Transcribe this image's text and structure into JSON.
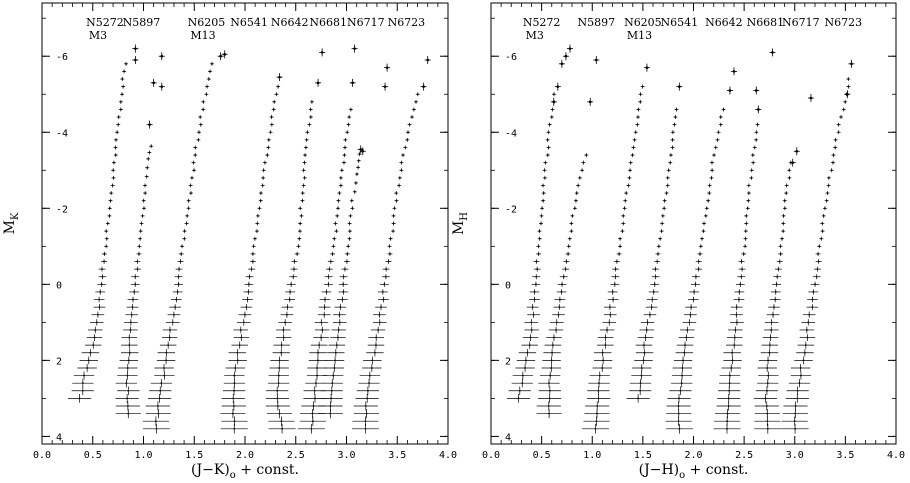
{
  "chart_data": [
    {
      "type": "scatter",
      "xlabel_main": "(J−K)",
      "xlabel_sub": "o",
      "xlabel_rest": " + const.",
      "ylabel_main": "M",
      "ylabel_sub": "K",
      "xlim": [
        0.0,
        4.0
      ],
      "ylim": [
        4.2,
        -7.4
      ],
      "x_ticks": [
        "0.0",
        "0.5",
        "1.0",
        "1.5",
        "2.0",
        "2.5",
        "3.0",
        "3.5",
        "4.0"
      ],
      "y_ticks": [
        "-6",
        "-4",
        "-2",
        "0",
        "2",
        "4"
      ],
      "clusters": [
        {
          "name": "N5272",
          "sub": "M3",
          "label_x": 0.62,
          "tip_mag": -6.0,
          "ridge": [
            [
              0.38,
              3.0
            ],
            [
              0.42,
              2.4
            ],
            [
              0.5,
              1.6
            ],
            [
              0.56,
              0.6
            ],
            [
              0.6,
              -0.4
            ],
            [
              0.64,
              -1.4
            ],
            [
              0.68,
              -2.4
            ],
            [
              0.72,
              -3.4
            ],
            [
              0.76,
              -4.4
            ],
            [
              0.8,
              -5.4
            ],
            [
              0.84,
              -6.0
            ]
          ],
          "tip": [
            [
              0.92,
              -6.2
            ],
            [
              0.92,
              -5.9
            ]
          ]
        },
        {
          "name": "N5897",
          "sub": "",
          "label_x": 0.98,
          "tip_mag": -3.8,
          "ridge": [
            [
              0.85,
              3.4
            ],
            [
              0.84,
              2.6
            ],
            [
              0.86,
              1.6
            ],
            [
              0.9,
              0.4
            ],
            [
              0.94,
              -0.6
            ],
            [
              0.98,
              -1.6
            ],
            [
              1.02,
              -2.6
            ],
            [
              1.05,
              -3.3
            ],
            [
              1.08,
              -3.8
            ]
          ],
          "tip": [
            [
              1.06,
              -4.2
            ],
            [
              1.1,
              -5.3
            ],
            [
              1.18,
              -5.2
            ],
            [
              1.18,
              -6.0
            ]
          ]
        },
        {
          "name": "N6205",
          "sub": "M13",
          "label_x": 1.62,
          "tip_mag": -6.0,
          "ridge": [
            [
              1.12,
              3.8
            ],
            [
              1.16,
              3.0
            ],
            [
              1.22,
              2.0
            ],
            [
              1.28,
              1.0
            ],
            [
              1.34,
              0.0
            ],
            [
              1.4,
              -1.2
            ],
            [
              1.46,
              -2.4
            ],
            [
              1.52,
              -3.6
            ],
            [
              1.58,
              -4.6
            ],
            [
              1.64,
              -5.4
            ],
            [
              1.7,
              -6.0
            ]
          ],
          "tip": [
            [
              1.76,
              -6.0
            ],
            [
              1.8,
              -6.05
            ]
          ]
        },
        {
          "name": "N6541",
          "sub": "",
          "label_x": 2.04,
          "tip_mag": -5.4,
          "ridge": [
            [
              1.9,
              3.8
            ],
            [
              1.88,
              3.0
            ],
            [
              1.92,
              2.0
            ],
            [
              1.98,
              1.0
            ],
            [
              2.04,
              0.0
            ],
            [
              2.1,
              -1.2
            ],
            [
              2.16,
              -2.4
            ],
            [
              2.22,
              -3.6
            ],
            [
              2.28,
              -4.6
            ],
            [
              2.34,
              -5.4
            ]
          ],
          "tip": [
            [
              2.34,
              -5.45
            ]
          ]
        },
        {
          "name": "N6642",
          "sub": "",
          "label_x": 2.44,
          "tip_mag": -5.2,
          "ridge": [
            [
              2.36,
              3.8
            ],
            [
              2.32,
              3.0
            ],
            [
              2.34,
              2.0
            ],
            [
              2.4,
              1.0
            ],
            [
              2.46,
              0.0
            ],
            [
              2.52,
              -1.0
            ],
            [
              2.56,
              -2.2
            ],
            [
              2.6,
              -3.4
            ],
            [
              2.64,
              -4.4
            ],
            [
              2.68,
              -5.0
            ]
          ],
          "tip": [
            [
              2.72,
              -5.3
            ],
            [
              2.76,
              -6.1
            ]
          ]
        },
        {
          "name": "N6681",
          "sub": "",
          "label_x": 2.82,
          "tip_mag": -4.8,
          "ridge": [
            [
              2.66,
              3.8
            ],
            [
              2.68,
              3.0
            ],
            [
              2.72,
              2.0
            ],
            [
              2.76,
              1.0
            ],
            [
              2.82,
              0.0
            ],
            [
              2.88,
              -1.2
            ],
            [
              2.94,
              -2.4
            ],
            [
              2.98,
              -3.6
            ],
            [
              3.02,
              -4.4
            ],
            [
              3.06,
              -4.8
            ]
          ],
          "tip": [
            [
              3.06,
              -5.3
            ],
            [
              3.08,
              -6.2
            ]
          ]
        },
        {
          "name": "N6717",
          "sub": "",
          "label_x": 3.19,
          "tip_mag": -3.6,
          "ridge": [
            [
              2.84,
              3.4
            ],
            [
              2.86,
              2.6
            ],
            [
              2.9,
              1.6
            ],
            [
              2.94,
              0.6
            ],
            [
              2.98,
              -0.2
            ],
            [
              3.02,
              -1.2
            ],
            [
              3.06,
              -2.2
            ],
            [
              3.1,
              -2.9
            ],
            [
              3.14,
              -3.6
            ]
          ],
          "tip": [
            [
              3.14,
              -3.55
            ],
            [
              3.16,
              -3.5
            ]
          ]
        },
        {
          "name": "N6723",
          "sub": "",
          "label_x": 3.59,
          "tip_mag": -5.8,
          "ridge": [
            [
              3.18,
              3.8
            ],
            [
              3.2,
              3.0
            ],
            [
              3.26,
              2.0
            ],
            [
              3.32,
              1.0
            ],
            [
              3.38,
              0.0
            ],
            [
              3.44,
              -1.2
            ],
            [
              3.5,
              -2.4
            ],
            [
              3.56,
              -3.4
            ],
            [
              3.62,
              -4.2
            ],
            [
              3.68,
              -4.8
            ],
            [
              3.72,
              -5.2
            ]
          ],
          "tip": [
            [
              3.38,
              -5.2
            ],
            [
              3.4,
              -5.7
            ],
            [
              3.76,
              -5.2
            ],
            [
              3.8,
              -5.9
            ]
          ]
        }
      ]
    },
    {
      "type": "scatter",
      "xlabel_main": "(J−H)",
      "xlabel_sub": "o",
      "xlabel_rest": " + const.",
      "ylabel_main": "M",
      "ylabel_sub": "H",
      "xlim": [
        0.0,
        4.0
      ],
      "ylim": [
        4.2,
        -7.4
      ],
      "x_ticks": [
        "0.0",
        "0.5",
        "1.0",
        "1.5",
        "2.0",
        "2.5",
        "3.0",
        "3.5",
        "4.0"
      ],
      "y_ticks": [
        "-6",
        "-4",
        "-2",
        "0",
        "2",
        "4"
      ],
      "clusters": [
        {
          "name": "N5272",
          "sub": "M3",
          "label_x": 0.5,
          "tip_mag": -5.4,
          "ridge": [
            [
              0.28,
              3.0
            ],
            [
              0.32,
              2.4
            ],
            [
              0.38,
              1.6
            ],
            [
              0.42,
              0.6
            ],
            [
              0.45,
              -0.4
            ],
            [
              0.48,
              -1.4
            ],
            [
              0.52,
              -2.6
            ],
            [
              0.56,
              -3.6
            ],
            [
              0.6,
              -4.6
            ],
            [
              0.64,
              -5.2
            ]
          ],
          "tip": [
            [
              0.62,
              -4.8
            ],
            [
              0.66,
              -5.2
            ],
            [
              0.7,
              -5.8
            ],
            [
              0.74,
              -6.0
            ],
            [
              0.78,
              -6.2
            ]
          ]
        },
        {
          "name": "N5897",
          "sub": "",
          "label_x": 1.04,
          "tip_mag": -3.6,
          "ridge": [
            [
              0.58,
              3.4
            ],
            [
              0.58,
              2.6
            ],
            [
              0.62,
              1.6
            ],
            [
              0.68,
              0.4
            ],
            [
              0.74,
              -0.6
            ],
            [
              0.8,
              -1.6
            ],
            [
              0.86,
              -2.6
            ],
            [
              0.92,
              -3.2
            ],
            [
              0.98,
              -3.6
            ]
          ],
          "tip": [
            [
              0.98,
              -4.8
            ],
            [
              1.04,
              -5.9
            ]
          ]
        },
        {
          "name": "N6205",
          "sub": "M13",
          "label_x": 1.5,
          "tip_mag": -5.6,
          "ridge": [
            [
              1.04,
              3.8
            ],
            [
              1.06,
              3.0
            ],
            [
              1.1,
              2.0
            ],
            [
              1.16,
              1.0
            ],
            [
              1.22,
              0.0
            ],
            [
              1.28,
              -1.2
            ],
            [
              1.34,
              -2.4
            ],
            [
              1.4,
              -3.6
            ],
            [
              1.46,
              -4.6
            ],
            [
              1.5,
              -5.4
            ]
          ],
          "tip": [
            [
              1.54,
              -5.7
            ]
          ]
        },
        {
          "name": "N6541",
          "sub": "",
          "label_x": 1.86,
          "tip_mag": -5.0,
          "ridge": [
            [
              1.46,
              3.0
            ],
            [
              1.48,
              2.4
            ],
            [
              1.52,
              1.6
            ],
            [
              1.58,
              0.6
            ],
            [
              1.64,
              -0.6
            ],
            [
              1.7,
              -1.8
            ],
            [
              1.76,
              -3.0
            ],
            [
              1.8,
              -4.0
            ],
            [
              1.84,
              -4.8
            ]
          ],
          "tip": [
            [
              1.86,
              -5.2
            ]
          ]
        },
        {
          "name": "N6642",
          "sub": "",
          "label_x": 2.3,
          "tip_mag": -5.0,
          "ridge": [
            [
              1.86,
              3.8
            ],
            [
              1.86,
              3.0
            ],
            [
              1.9,
              2.0
            ],
            [
              1.96,
              1.0
            ],
            [
              2.02,
              0.0
            ],
            [
              2.08,
              -1.0
            ],
            [
              2.14,
              -2.2
            ],
            [
              2.2,
              -3.4
            ],
            [
              2.26,
              -4.2
            ],
            [
              2.3,
              -4.8
            ]
          ],
          "tip": [
            [
              2.36,
              -5.1
            ],
            [
              2.4,
              -5.6
            ]
          ]
        },
        {
          "name": "N6681",
          "sub": "",
          "label_x": 2.71,
          "tip_mag": -4.4,
          "ridge": [
            [
              2.34,
              3.8
            ],
            [
              2.34,
              3.0
            ],
            [
              2.38,
              2.0
            ],
            [
              2.42,
              1.0
            ],
            [
              2.46,
              0.0
            ],
            [
              2.5,
              -1.0
            ],
            [
              2.54,
              -2.2
            ],
            [
              2.58,
              -3.2
            ],
            [
              2.62,
              -4.0
            ],
            [
              2.64,
              -4.4
            ]
          ],
          "tip": [
            [
              2.64,
              -4.6
            ],
            [
              2.62,
              -5.1
            ],
            [
              2.78,
              -6.1
            ]
          ]
        },
        {
          "name": "N6717",
          "sub": "",
          "label_x": 3.06,
          "tip_mag": -3.4,
          "ridge": [
            [
              2.74,
              3.8
            ],
            [
              2.72,
              3.0
            ],
            [
              2.74,
              2.0
            ],
            [
              2.78,
              1.0
            ],
            [
              2.82,
              0.0
            ],
            [
              2.86,
              -1.0
            ],
            [
              2.9,
              -2.0
            ],
            [
              2.94,
              -2.8
            ],
            [
              2.98,
              -3.4
            ]
          ],
          "tip": [
            [
              3.02,
              -3.5
            ],
            [
              2.98,
              -3.2
            ]
          ]
        },
        {
          "name": "N6723",
          "sub": "",
          "label_x": 3.48,
          "tip_mag": -5.6,
          "ridge": [
            [
              3.0,
              3.8
            ],
            [
              3.02,
              3.0
            ],
            [
              3.08,
              2.0
            ],
            [
              3.14,
              1.0
            ],
            [
              3.2,
              0.0
            ],
            [
              3.26,
              -1.2
            ],
            [
              3.32,
              -2.4
            ],
            [
              3.38,
              -3.4
            ],
            [
              3.44,
              -4.2
            ],
            [
              3.5,
              -4.8
            ],
            [
              3.54,
              -5.6
            ]
          ],
          "tip": [
            [
              3.16,
              -4.9
            ],
            [
              3.52,
              -5.0
            ],
            [
              3.56,
              -5.8
            ]
          ]
        }
      ]
    }
  ]
}
